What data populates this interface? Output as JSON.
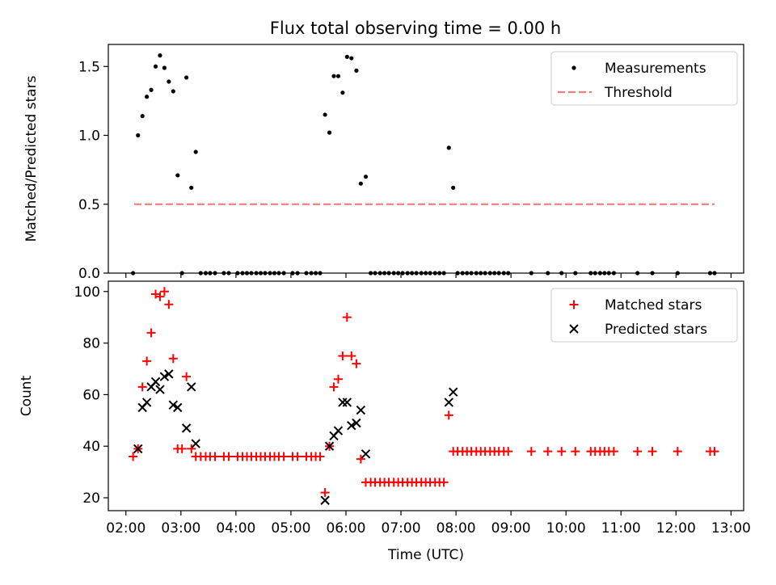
{
  "title": "Flux total observing time = 0.00 h",
  "chart_data": [
    {
      "type": "scatter",
      "ylabel": "Matched/Predicted stars",
      "xlim": [
        1.68,
        13.23
      ],
      "ylim": [
        0,
        1.66
      ],
      "yticks": [
        0.0,
        0.5,
        1.0,
        1.5
      ],
      "ytick_labels": [
        "0.0",
        "0.5",
        "1.0",
        "1.5"
      ],
      "legend_position": "top-right",
      "threshold": {
        "name": "Threshold",
        "value": 0.5,
        "x_range": [
          2.15,
          12.7
        ],
        "color": "#f08080"
      },
      "series": [
        {
          "name": "Measurements",
          "color": "#000000",
          "points": [
            [
              2.13,
              0.0
            ],
            [
              2.22,
              1.0
            ],
            [
              2.3,
              1.14
            ],
            [
              2.38,
              1.28
            ],
            [
              2.46,
              1.33
            ],
            [
              2.54,
              1.5
            ],
            [
              2.62,
              1.58
            ],
            [
              2.7,
              1.49
            ],
            [
              2.78,
              1.39
            ],
            [
              2.86,
              1.32
            ],
            [
              2.94,
              0.71
            ],
            [
              3.02,
              0.0
            ],
            [
              3.1,
              1.42
            ],
            [
              3.19,
              0.62
            ],
            [
              3.27,
              0.88
            ],
            [
              3.36,
              0.0
            ],
            [
              3.45,
              0.0
            ],
            [
              3.53,
              0.0
            ],
            [
              3.62,
              0.0
            ],
            [
              3.78,
              0.0
            ],
            [
              3.87,
              0.0
            ],
            [
              4.03,
              0.0
            ],
            [
              4.12,
              0.0
            ],
            [
              4.2,
              0.0
            ],
            [
              4.28,
              0.0
            ],
            [
              4.37,
              0.0
            ],
            [
              4.45,
              0.0
            ],
            [
              4.53,
              0.0
            ],
            [
              4.62,
              0.0
            ],
            [
              4.7,
              0.0
            ],
            [
              4.78,
              0.0
            ],
            [
              4.87,
              0.0
            ],
            [
              5.03,
              0.0
            ],
            [
              5.12,
              0.0
            ],
            [
              5.28,
              0.0
            ],
            [
              5.37,
              0.0
            ],
            [
              5.45,
              0.0
            ],
            [
              5.53,
              0.0
            ],
            [
              5.62,
              1.15
            ],
            [
              5.7,
              1.02
            ],
            [
              5.78,
              1.43
            ],
            [
              5.86,
              1.43
            ],
            [
              5.94,
              1.31
            ],
            [
              6.02,
              1.57
            ],
            [
              6.1,
              1.56
            ],
            [
              6.19,
              1.47
            ],
            [
              6.27,
              0.65
            ],
            [
              6.36,
              0.7
            ],
            [
              6.45,
              0.0
            ],
            [
              6.53,
              0.0
            ],
            [
              6.62,
              0.0
            ],
            [
              6.7,
              0.0
            ],
            [
              6.78,
              0.0
            ],
            [
              6.87,
              0.0
            ],
            [
              6.95,
              0.0
            ],
            [
              7.03,
              0.0
            ],
            [
              7.12,
              0.0
            ],
            [
              7.2,
              0.0
            ],
            [
              7.28,
              0.0
            ],
            [
              7.37,
              0.0
            ],
            [
              7.45,
              0.0
            ],
            [
              7.53,
              0.0
            ],
            [
              7.62,
              0.0
            ],
            [
              7.7,
              0.0
            ],
            [
              7.78,
              0.0
            ],
            [
              7.87,
              0.91
            ],
            [
              7.95,
              0.62
            ],
            [
              8.03,
              0.0
            ],
            [
              8.12,
              0.0
            ],
            [
              8.2,
              0.0
            ],
            [
              8.28,
              0.0
            ],
            [
              8.37,
              0.0
            ],
            [
              8.45,
              0.0
            ],
            [
              8.53,
              0.0
            ],
            [
              8.62,
              0.0
            ],
            [
              8.7,
              0.0
            ],
            [
              8.78,
              0.0
            ],
            [
              8.87,
              0.0
            ],
            [
              8.95,
              0.0
            ],
            [
              9.37,
              0.0
            ],
            [
              9.67,
              0.0
            ],
            [
              9.92,
              0.0
            ],
            [
              10.17,
              0.0
            ],
            [
              10.45,
              0.0
            ],
            [
              10.53,
              0.0
            ],
            [
              10.62,
              0.0
            ],
            [
              10.7,
              0.0
            ],
            [
              10.78,
              0.0
            ],
            [
              10.87,
              0.0
            ],
            [
              11.3,
              0.0
            ],
            [
              11.57,
              0.0
            ],
            [
              12.03,
              0.0
            ],
            [
              12.62,
              0.0
            ],
            [
              12.7,
              0.0
            ]
          ]
        }
      ]
    },
    {
      "type": "scatter",
      "xlabel": "Time (UTC)",
      "ylabel": "Count",
      "xlim": [
        1.68,
        13.23
      ],
      "ylim": [
        15,
        104
      ],
      "yticks": [
        20,
        40,
        60,
        80,
        100
      ],
      "ytick_labels": [
        "20",
        "40",
        "60",
        "80",
        "100"
      ],
      "xticks": [
        2,
        3,
        4,
        5,
        6,
        7,
        8,
        9,
        10,
        11,
        12,
        13
      ],
      "xtick_labels": [
        "02:00",
        "03:00",
        "04:00",
        "05:00",
        "06:00",
        "07:00",
        "08:00",
        "09:00",
        "10:00",
        "11:00",
        "12:00",
        "13:00"
      ],
      "legend_position": "top-right",
      "series": [
        {
          "name": "Matched stars",
          "color": "#ff0000",
          "marker": "plus",
          "points": [
            [
              2.13,
              36
            ],
            [
              2.22,
              39
            ],
            [
              2.3,
              63
            ],
            [
              2.38,
              73
            ],
            [
              2.46,
              84
            ],
            [
              2.54,
              99
            ],
            [
              2.62,
              98
            ],
            [
              2.7,
              100
            ],
            [
              2.78,
              95
            ],
            [
              2.86,
              74
            ],
            [
              2.94,
              39
            ],
            [
              3.02,
              39
            ],
            [
              3.1,
              67
            ],
            [
              3.19,
              39
            ],
            [
              3.27,
              36
            ],
            [
              3.36,
              36
            ],
            [
              3.45,
              36
            ],
            [
              3.53,
              36
            ],
            [
              3.62,
              36
            ],
            [
              3.78,
              36
            ],
            [
              3.87,
              36
            ],
            [
              4.03,
              36
            ],
            [
              4.12,
              36
            ],
            [
              4.2,
              36
            ],
            [
              4.28,
              36
            ],
            [
              4.37,
              36
            ],
            [
              4.45,
              36
            ],
            [
              4.53,
              36
            ],
            [
              4.62,
              36
            ],
            [
              4.7,
              36
            ],
            [
              4.78,
              36
            ],
            [
              4.87,
              36
            ],
            [
              5.03,
              36
            ],
            [
              5.12,
              36
            ],
            [
              5.28,
              36
            ],
            [
              5.37,
              36
            ],
            [
              5.45,
              36
            ],
            [
              5.53,
              36
            ],
            [
              5.62,
              22
            ],
            [
              5.7,
              40
            ],
            [
              5.78,
              63
            ],
            [
              5.86,
              66
            ],
            [
              5.94,
              75
            ],
            [
              6.02,
              90
            ],
            [
              6.1,
              75
            ],
            [
              6.19,
              72
            ],
            [
              6.27,
              35
            ],
            [
              6.36,
              26
            ],
            [
              6.45,
              26
            ],
            [
              6.53,
              26
            ],
            [
              6.62,
              26
            ],
            [
              6.7,
              26
            ],
            [
              6.78,
              26
            ],
            [
              6.87,
              26
            ],
            [
              6.95,
              26
            ],
            [
              7.03,
              26
            ],
            [
              7.12,
              26
            ],
            [
              7.2,
              26
            ],
            [
              7.28,
              26
            ],
            [
              7.37,
              26
            ],
            [
              7.45,
              26
            ],
            [
              7.53,
              26
            ],
            [
              7.62,
              26
            ],
            [
              7.7,
              26
            ],
            [
              7.78,
              26
            ],
            [
              7.87,
              52
            ],
            [
              7.95,
              38
            ],
            [
              8.03,
              38
            ],
            [
              8.12,
              38
            ],
            [
              8.2,
              38
            ],
            [
              8.28,
              38
            ],
            [
              8.37,
              38
            ],
            [
              8.45,
              38
            ],
            [
              8.53,
              38
            ],
            [
              8.62,
              38
            ],
            [
              8.7,
              38
            ],
            [
              8.78,
              38
            ],
            [
              8.87,
              38
            ],
            [
              8.95,
              38
            ],
            [
              9.37,
              38
            ],
            [
              9.67,
              38
            ],
            [
              9.92,
              38
            ],
            [
              10.17,
              38
            ],
            [
              10.45,
              38
            ],
            [
              10.53,
              38
            ],
            [
              10.62,
              38
            ],
            [
              10.7,
              38
            ],
            [
              10.78,
              38
            ],
            [
              10.87,
              38
            ],
            [
              11.3,
              38
            ],
            [
              11.57,
              38
            ],
            [
              12.03,
              38
            ],
            [
              12.62,
              38
            ],
            [
              12.7,
              38
            ]
          ]
        },
        {
          "name": "Predicted stars",
          "color": "#000000",
          "marker": "x",
          "points": [
            [
              2.22,
              39
            ],
            [
              2.3,
              55
            ],
            [
              2.38,
              57
            ],
            [
              2.46,
              63
            ],
            [
              2.54,
              65
            ],
            [
              2.62,
              62
            ],
            [
              2.7,
              67
            ],
            [
              2.78,
              68
            ],
            [
              2.86,
              56
            ],
            [
              2.94,
              55
            ],
            [
              3.1,
              47
            ],
            [
              3.19,
              63
            ],
            [
              3.27,
              41
            ],
            [
              5.62,
              19
            ],
            [
              5.7,
              40
            ],
            [
              5.78,
              44
            ],
            [
              5.86,
              46
            ],
            [
              5.94,
              57
            ],
            [
              6.02,
              57
            ],
            [
              6.1,
              48
            ],
            [
              6.19,
              49
            ],
            [
              6.27,
              54
            ],
            [
              6.36,
              37
            ],
            [
              7.87,
              57
            ],
            [
              7.95,
              61
            ]
          ]
        }
      ]
    }
  ]
}
